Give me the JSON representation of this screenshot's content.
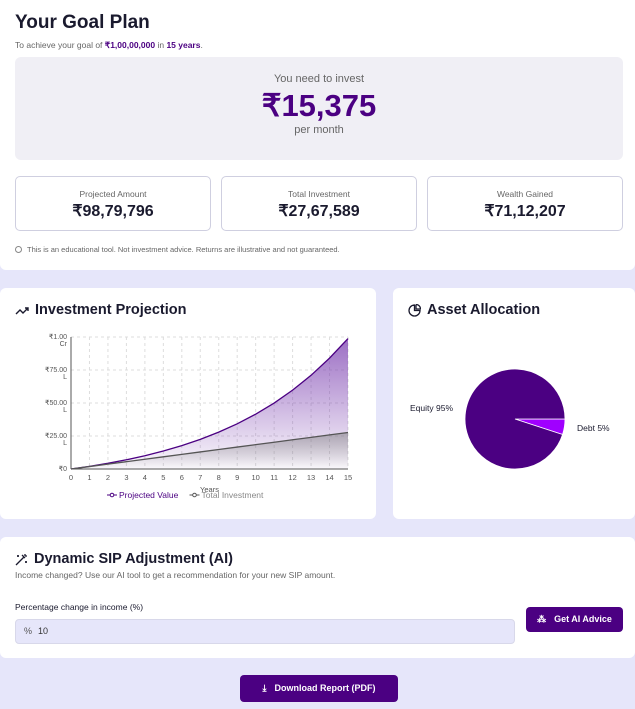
{
  "header": {
    "title": "Your Goal Plan",
    "subtitle_prefix": "To achieve your goal of ",
    "goal": "₹1,00,00,000",
    "subtitle_mid": " in ",
    "years": "15 years",
    "subtitle_suffix": "."
  },
  "monthly": {
    "label": "You need to invest",
    "amount": "₹15,375",
    "unit": "per month"
  },
  "stats": [
    {
      "label": "Projected Amount",
      "value": "₹98,79,796"
    },
    {
      "label": "Total Investment",
      "value": "₹27,67,589"
    },
    {
      "label": "Wealth Gained",
      "value": "₹71,12,207"
    }
  ],
  "disclaimer": "This is an educational tool. Not investment advice. Returns are illustrative and not guaranteed.",
  "projection": {
    "title": "Investment Projection"
  },
  "allocation": {
    "title": "Asset Allocation"
  },
  "chart_data": [
    {
      "type": "area",
      "xlabel": "Years",
      "ylabel": "",
      "xlim": [
        0,
        15
      ],
      "ylim": [
        0,
        10000000
      ],
      "x": [
        0,
        1,
        2,
        3,
        4,
        5,
        6,
        7,
        8,
        9,
        10,
        11,
        12,
        13,
        14,
        15
      ],
      "y_ticks": [
        {
          "value": 0,
          "label": "₹0"
        },
        {
          "value": 2500000,
          "label": "₹25.00 L"
        },
        {
          "value": 5000000,
          "label": "₹50.00 L"
        },
        {
          "value": 7500000,
          "label": "₹75.00 L"
        },
        {
          "value": 10000000,
          "label": "₹1.00 Cr"
        }
      ],
      "grid": true,
      "legend": "bottom",
      "series": [
        {
          "name": "Projected Value",
          "color": "#4b0082",
          "values": [
            0,
            199600,
            430000,
            697000,
            1004000,
            1360000,
            1770000,
            2244000,
            2792000,
            3424000,
            4155000,
            4998000,
            5973000,
            7099000,
            8400000,
            9879796
          ]
        },
        {
          "name": "Total Investment",
          "color": "#555555",
          "values": [
            0,
            184500,
            369000,
            553500,
            738000,
            922500,
            1107000,
            1291500,
            1476000,
            1660500,
            1845000,
            2029500,
            2214000,
            2398500,
            2583000,
            2767589
          ]
        }
      ]
    },
    {
      "type": "pie",
      "slices": [
        {
          "label": "Equity",
          "value": 95,
          "color": "#4b0082"
        },
        {
          "label": "Debt",
          "value": 5,
          "color": "#a000ff"
        }
      ]
    }
  ],
  "ai": {
    "title": "Dynamic SIP Adjustment (AI)",
    "subtitle": "Income changed? Use our AI tool to get a recommendation for your new SIP amount.",
    "field_label": "Percentage change in income (%)",
    "prefix": "%",
    "value": "10",
    "button": "Get AI Advice"
  },
  "download": "Download Report (PDF)"
}
